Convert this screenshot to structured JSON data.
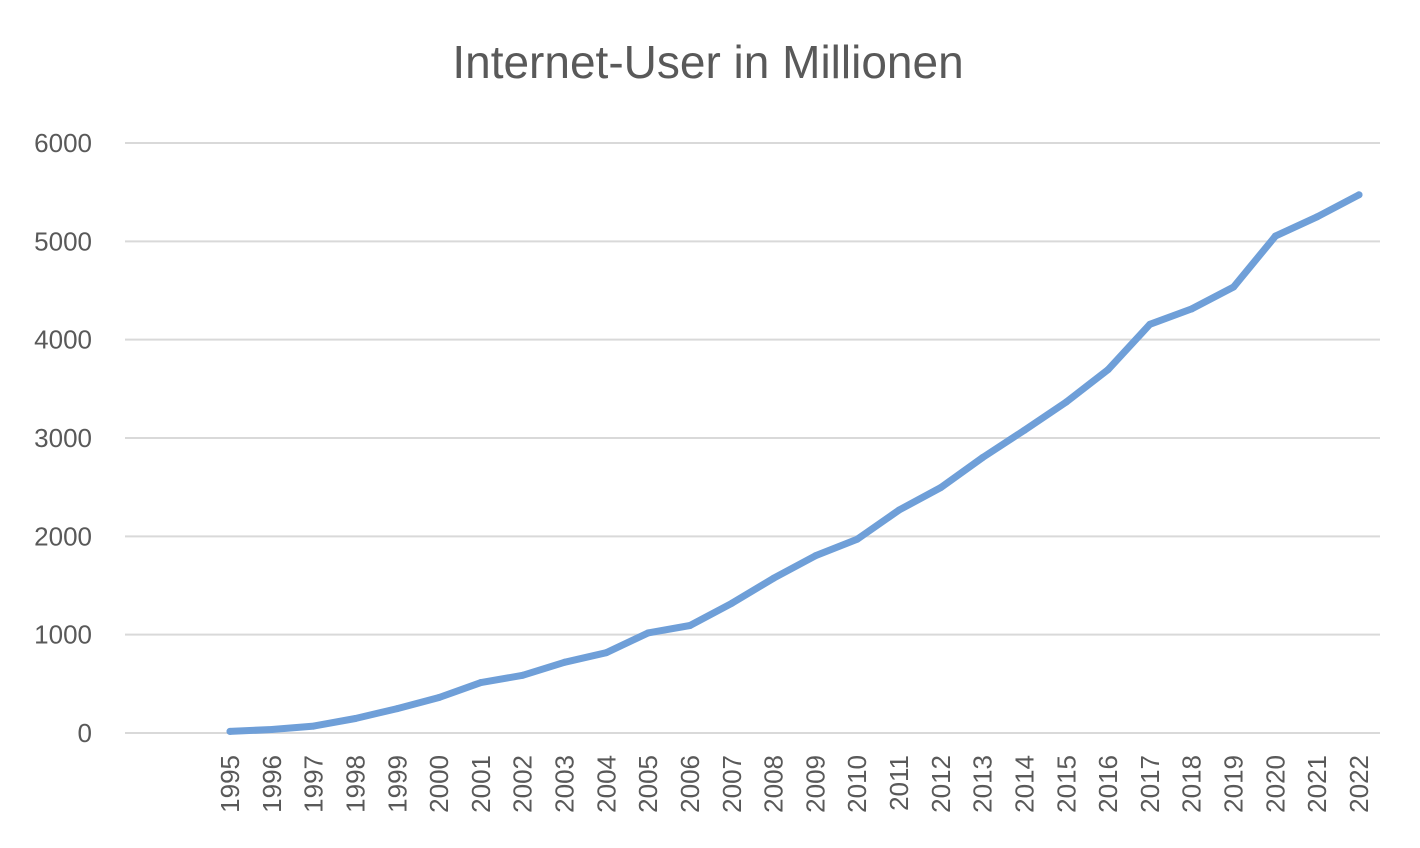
{
  "chart_data": {
    "type": "line",
    "title": "Internet-User in Millionen",
    "xlabel": "",
    "ylabel": "",
    "ylim": [
      0,
      6000
    ],
    "yticks": [
      "0",
      "1000",
      "2000",
      "3000",
      "4000",
      "5000",
      "6000"
    ],
    "grid": true,
    "legend": "none",
    "categories": [
      "1995",
      "1996",
      "1997",
      "1998",
      "1999",
      "2000",
      "2001",
      "2002",
      "2003",
      "2004",
      "2005",
      "2006",
      "2007",
      "2008",
      "2009",
      "2010",
      "2011",
      "2012",
      "2013",
      "2014",
      "2015",
      "2016",
      "2017",
      "2018",
      "2019",
      "2020",
      "2021",
      "2022"
    ],
    "series": [
      {
        "values": [
          16,
          36,
          70,
          147,
          248,
          361,
          513,
          587,
          719,
          817,
          1018,
          1093,
          1319,
          1574,
          1802,
          1971,
          2267,
          2497,
          2802,
          3079,
          3366,
          3696,
          4156,
          4313,
          4536,
          5053,
          5250,
          5473
        ],
        "color": "#6f9fd8"
      }
    ],
    "colors": {
      "line": "#6f9fd8",
      "grid": "#d9d9d9",
      "text": "#595959"
    }
  }
}
